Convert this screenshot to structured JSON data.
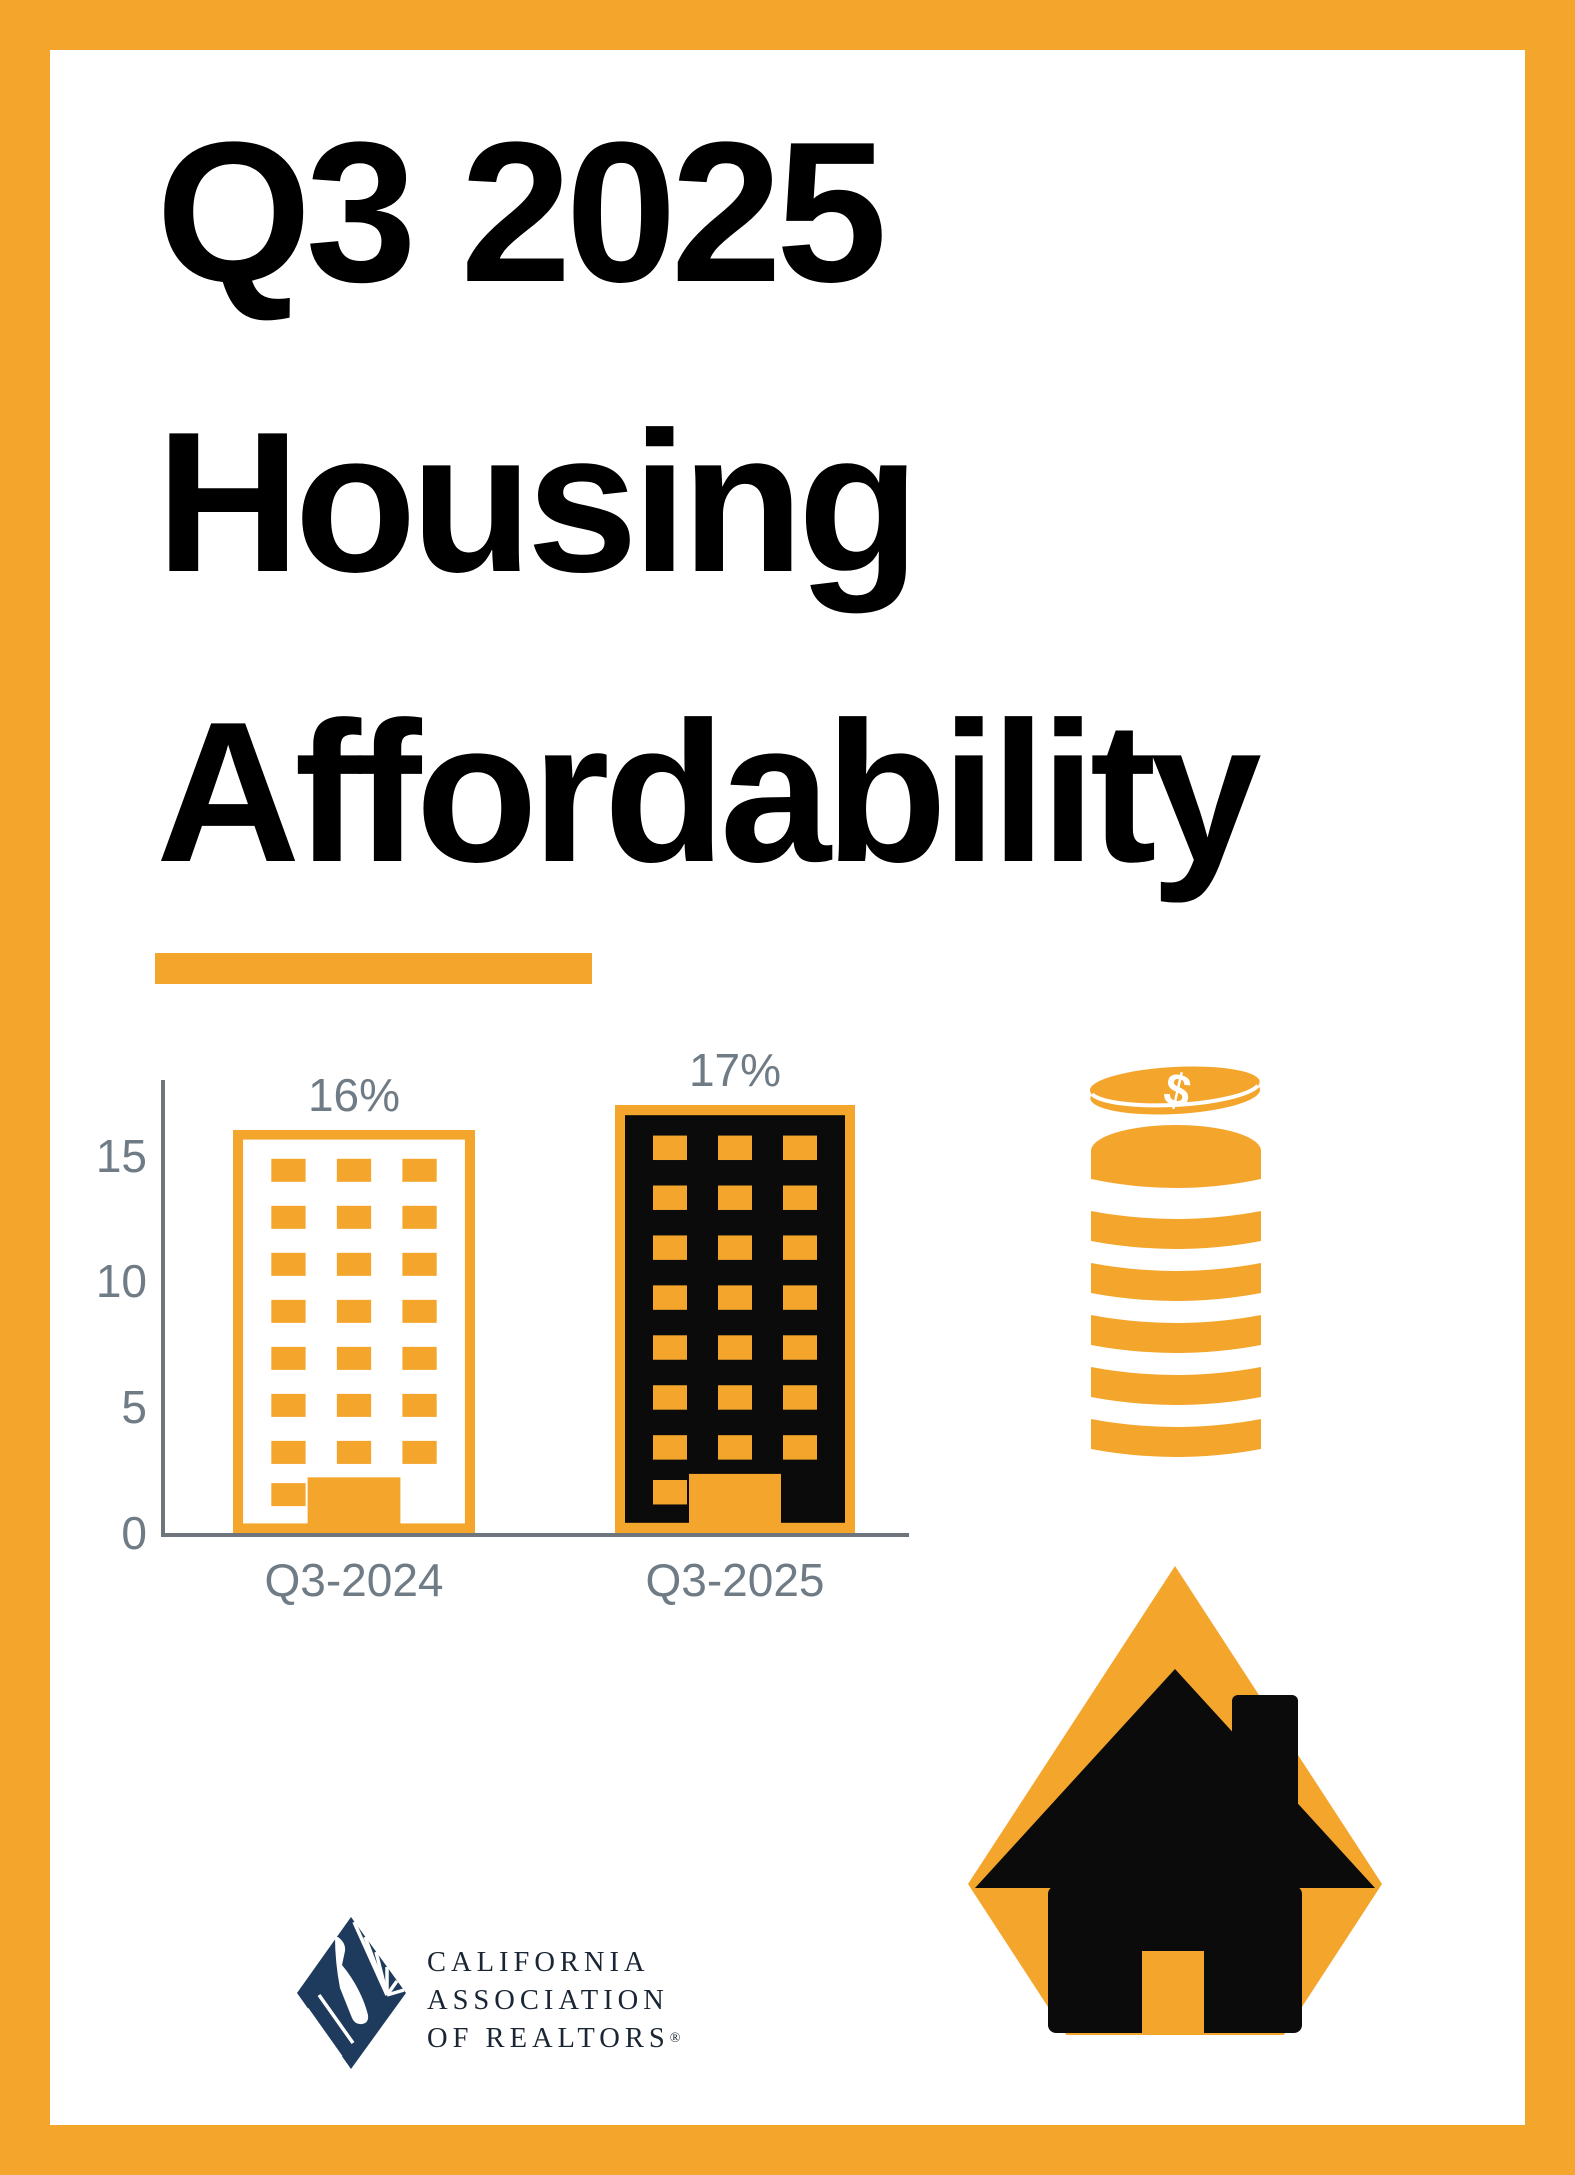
{
  "title": {
    "lines": [
      "Q3 2025",
      "Housing",
      "Affordability"
    ]
  },
  "chart_data": {
    "type": "bar",
    "title": "",
    "xlabel": "",
    "ylabel": "",
    "categories": [
      "Q3-2024",
      "Q3-2025"
    ],
    "values": [
      16,
      17
    ],
    "value_labels": [
      "16%",
      "17%"
    ],
    "unit": "%",
    "yticks": [
      0,
      5,
      10,
      15
    ],
    "ylim": [
      0,
      18
    ],
    "grid": false,
    "legend": false,
    "bar_styles": [
      {
        "fill": "#FFFFFF",
        "window_color": "#F4A52C",
        "outline": "#F4A52C"
      },
      {
        "fill": "#0B0B0B",
        "window_color": "#F4A52C",
        "outline": "#F4A52C"
      }
    ],
    "label_color": "#6F7B85",
    "axis_color": "#6E757D"
  },
  "icons": {
    "coin_stack": "coin-stack",
    "coin_dollar_symbol": "$",
    "house": "house-with-diamond"
  },
  "logo": {
    "line1": "CALIFORNIA",
    "line2": "ASSOCIATION",
    "line3": "OF REALTORS",
    "registered": "®",
    "text_color": "#1A2633",
    "icon_color": "#1E3A5C"
  },
  "colors": {
    "frame": "#F4A52C",
    "accent_bar": "#F4A52C",
    "title": "#000000",
    "background": "#FFFFFF"
  }
}
